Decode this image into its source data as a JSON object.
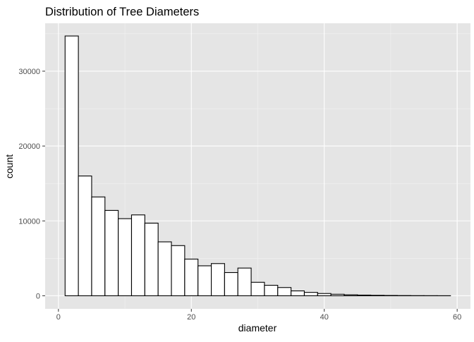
{
  "chart_data": {
    "type": "bar",
    "title": "Distribution of Tree Diameters",
    "xlabel": "diameter",
    "ylabel": "count",
    "bin_width": 2,
    "bins": [
      {
        "x0": 1,
        "x1": 3,
        "count": 34700
      },
      {
        "x0": 3,
        "x1": 5,
        "count": 16000
      },
      {
        "x0": 5,
        "x1": 7,
        "count": 13200
      },
      {
        "x0": 7,
        "x1": 9,
        "count": 11400
      },
      {
        "x0": 9,
        "x1": 11,
        "count": 10300
      },
      {
        "x0": 11,
        "x1": 13,
        "count": 10800
      },
      {
        "x0": 13,
        "x1": 15,
        "count": 9700
      },
      {
        "x0": 15,
        "x1": 17,
        "count": 7200
      },
      {
        "x0": 17,
        "x1": 19,
        "count": 6700
      },
      {
        "x0": 19,
        "x1": 21,
        "count": 4900
      },
      {
        "x0": 21,
        "x1": 23,
        "count": 4000
      },
      {
        "x0": 23,
        "x1": 25,
        "count": 4300
      },
      {
        "x0": 25,
        "x1": 27,
        "count": 3100
      },
      {
        "x0": 27,
        "x1": 29,
        "count": 3700
      },
      {
        "x0": 29,
        "x1": 31,
        "count": 1800
      },
      {
        "x0": 31,
        "x1": 33,
        "count": 1400
      },
      {
        "x0": 33,
        "x1": 35,
        "count": 1100
      },
      {
        "x0": 35,
        "x1": 37,
        "count": 650
      },
      {
        "x0": 37,
        "x1": 39,
        "count": 450
      },
      {
        "x0": 39,
        "x1": 41,
        "count": 300
      },
      {
        "x0": 41,
        "x1": 43,
        "count": 200
      },
      {
        "x0": 43,
        "x1": 45,
        "count": 130
      },
      {
        "x0": 45,
        "x1": 47,
        "count": 90
      },
      {
        "x0": 47,
        "x1": 49,
        "count": 60
      },
      {
        "x0": 49,
        "x1": 51,
        "count": 40
      },
      {
        "x0": 51,
        "x1": 53,
        "count": 25
      },
      {
        "x0": 53,
        "x1": 55,
        "count": 15
      },
      {
        "x0": 55,
        "x1": 57,
        "count": 10
      },
      {
        "x0": 57,
        "x1": 59,
        "count": 5
      }
    ],
    "xlim": [
      -2,
      62
    ],
    "ylim": [
      -1750,
      36400
    ],
    "x_ticks": [
      0,
      20,
      40,
      60
    ],
    "x_tick_labels": [
      "0",
      "20",
      "40",
      "60"
    ],
    "y_ticks": [
      0,
      10000,
      20000,
      30000
    ],
    "y_tick_labels": [
      "0",
      "10000",
      "20000",
      "30000"
    ],
    "grid": true,
    "legend": false,
    "colors": {
      "panel_background": "#e5e5e5",
      "grid_major": "#ffffff",
      "grid_minor": "#f2f2f2",
      "bar_fill": "#ffffff",
      "bar_outline": "#000000",
      "tick_label": "#4d4d4d",
      "axis_title": "#000000"
    }
  }
}
